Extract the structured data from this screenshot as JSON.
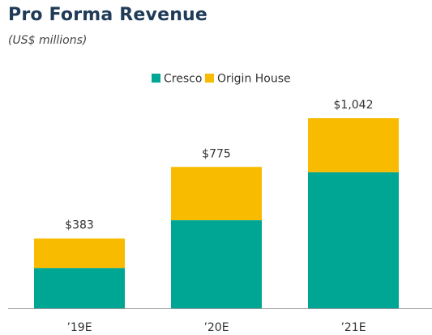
{
  "title": "Pro Forma Revenue",
  "subtitle": "(US$ millions)",
  "chart_data": {
    "type": "bar",
    "stacked": true,
    "categories": [
      "’19E",
      "’20E",
      "’21E"
    ],
    "series": [
      {
        "name": "Cresco",
        "color": "#00a694",
        "values": [
          221,
          483,
          746
        ]
      },
      {
        "name": "Origin House",
        "color": "#f8bb00",
        "values": [
          162,
          292,
          296
        ]
      }
    ],
    "totals": [
      "$383",
      "$775",
      "$1,042"
    ],
    "ylim": [
      0,
      1100
    ],
    "legend_position": "top",
    "grid": false
  }
}
